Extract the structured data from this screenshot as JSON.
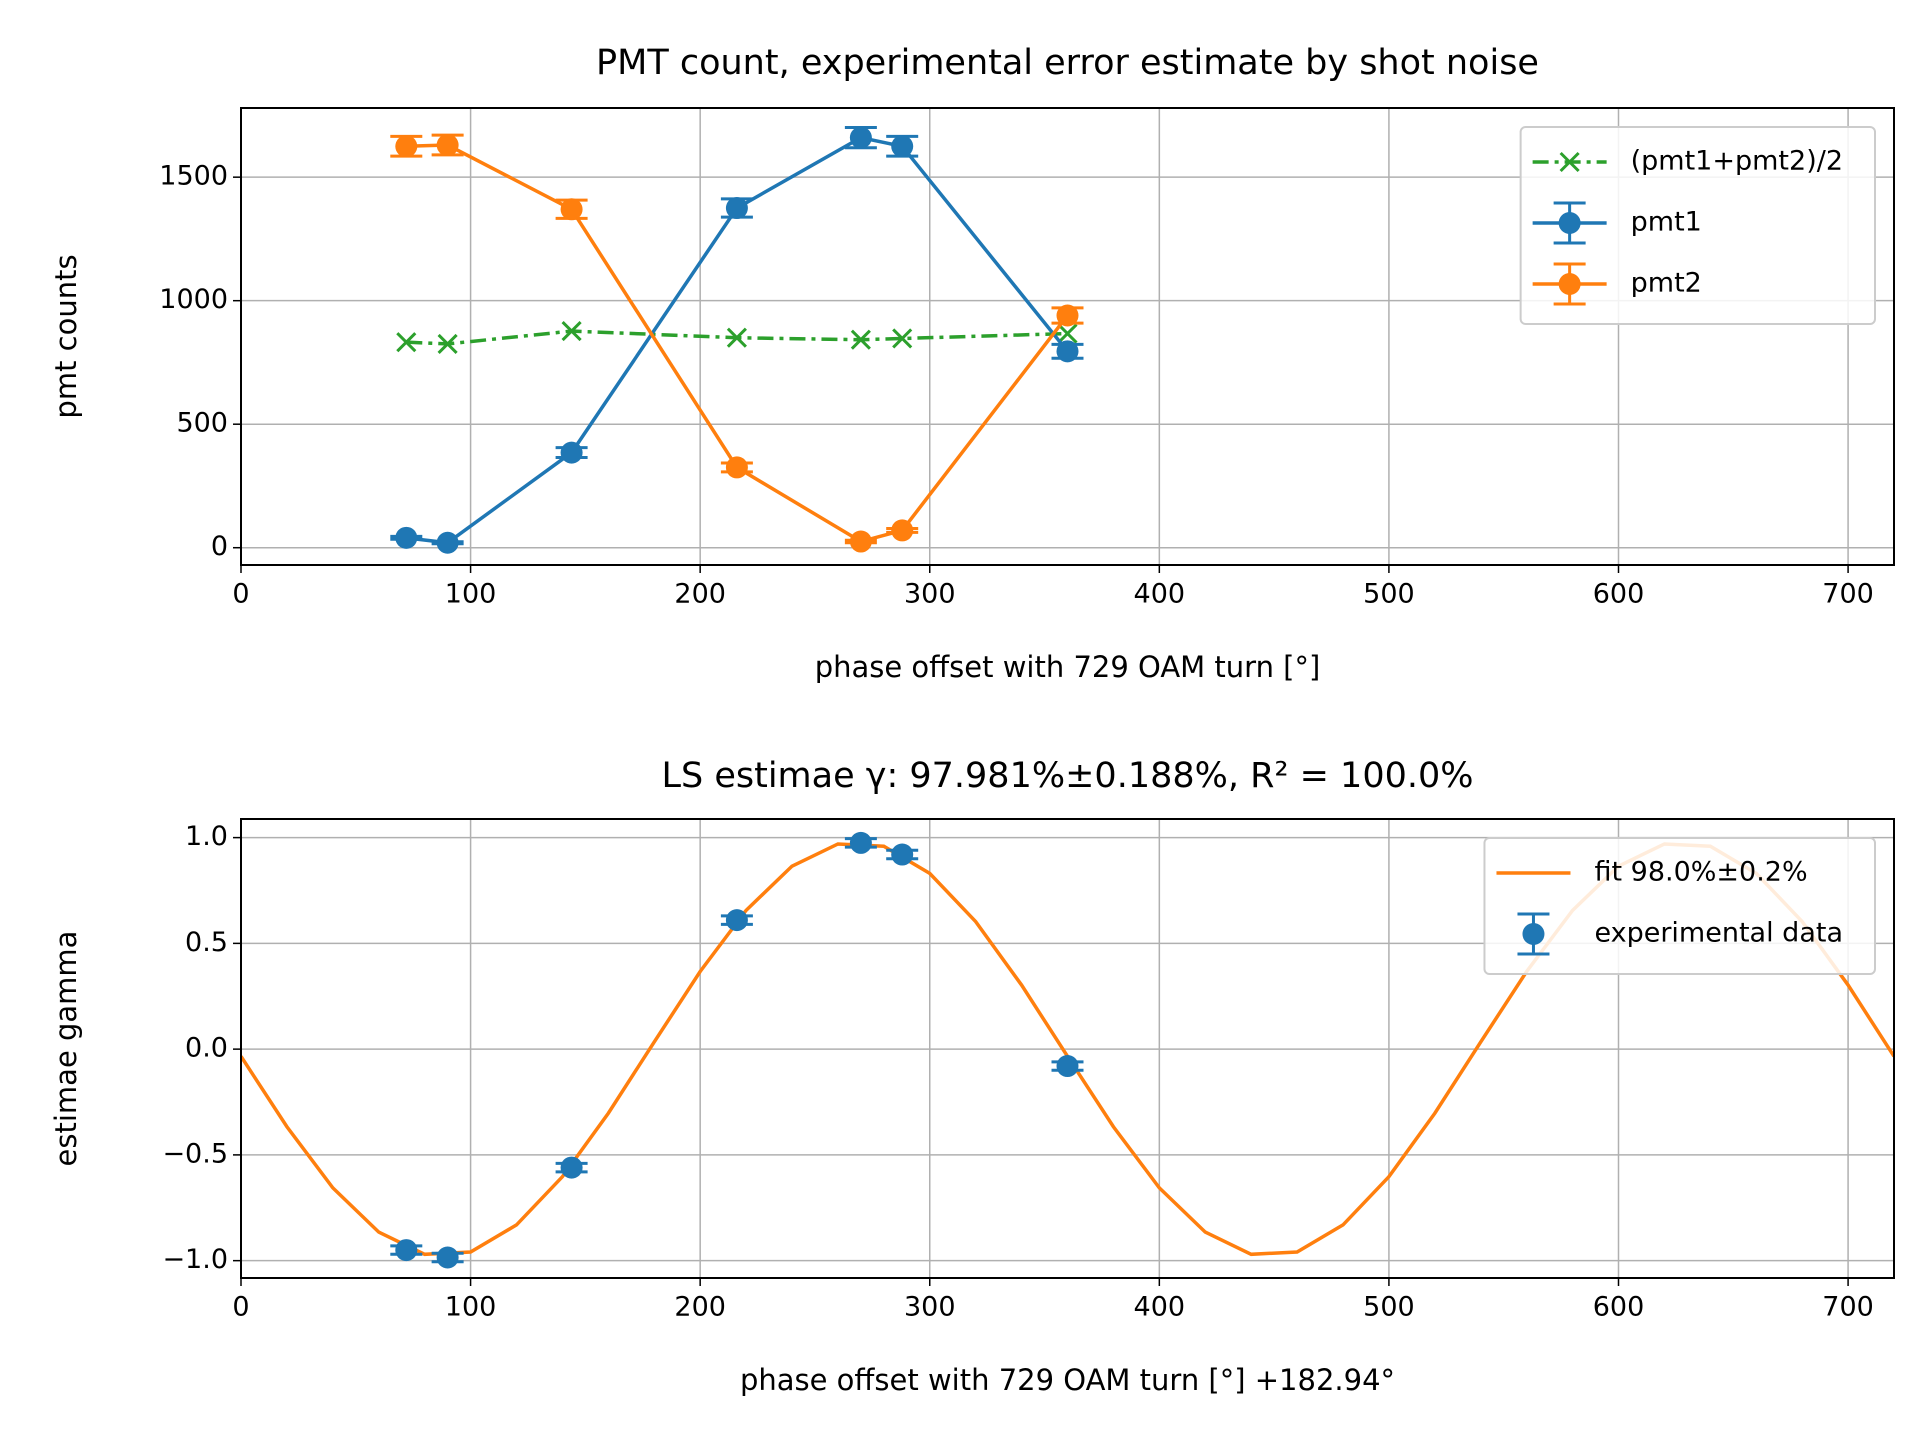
{
  "chart_data": [
    {
      "type": "line",
      "title": "PMT count, experimental error estimate by shot noise",
      "xlabel": "phase offset with 729 OAM turn [°]",
      "ylabel": "pmt counts",
      "xlim": [
        0,
        720
      ],
      "xticks": [
        0,
        100,
        200,
        300,
        400,
        500,
        600,
        700
      ],
      "ylim": [
        -70,
        1780
      ],
      "yticks": [
        0,
        500,
        1000,
        1500
      ],
      "grid": true,
      "legend": "upper right",
      "series": [
        {
          "name": "(pmt1+pmt2)/2",
          "color": "#2ca02c",
          "marker": "x",
          "linestyle": "dashdot",
          "x": [
            72,
            90,
            144,
            216,
            270,
            288,
            360
          ],
          "values": [
            832,
            825,
            877,
            850,
            842,
            847,
            867
          ]
        },
        {
          "name": "pmt1",
          "color": "#1f77b4",
          "marker": "o",
          "linestyle": "solid",
          "x": [
            72,
            90,
            144,
            216,
            270,
            288,
            360
          ],
          "values": [
            40,
            20,
            385,
            1375,
            1660,
            1625,
            795
          ],
          "errors": [
            6,
            4,
            20,
            37,
            41,
            40,
            28
          ]
        },
        {
          "name": "pmt2",
          "color": "#ff7f0e",
          "marker": "o",
          "linestyle": "solid",
          "x": [
            72,
            90,
            144,
            216,
            270,
            288,
            360
          ],
          "values": [
            1625,
            1630,
            1370,
            325,
            25,
            70,
            940
          ],
          "errors": [
            40,
            40,
            37,
            18,
            5,
            8,
            31
          ]
        }
      ]
    },
    {
      "type": "line",
      "title": "LS estimae γ: 97.981%±0.188%, R² = 100.0%",
      "xlabel": "phase offset with 729 OAM turn [°] +182.94°",
      "ylabel": "estimae gamma",
      "xlim": [
        0,
        720
      ],
      "xticks": [
        0,
        100,
        200,
        300,
        400,
        500,
        600,
        700
      ],
      "ylim": [
        -1.082,
        1.088
      ],
      "yticks": [
        {
          "value": -1,
          "label": "−1.0"
        },
        {
          "value": -0.5,
          "label": "−0.5"
        },
        {
          "value": 0,
          "label": "0.0"
        },
        {
          "value": 0.5,
          "label": "0.5"
        },
        {
          "value": 1,
          "label": "1.0"
        }
      ],
      "grid": true,
      "legend": "upper right",
      "series": [
        {
          "name": "fit 98.0%±0.2%",
          "color": "#ff7f0e",
          "marker": "none",
          "linestyle": "solid",
          "x": [
            0,
            20,
            40,
            60,
            80,
            100,
            120,
            140,
            160,
            180,
            200,
            220,
            240,
            260,
            280,
            300,
            320,
            340,
            360,
            380,
            400,
            420,
            440,
            460,
            480,
            500,
            520,
            540,
            560,
            580,
            600,
            620,
            640,
            660,
            680,
            700,
            720
          ],
          "values": [
            -0.034,
            -0.367,
            -0.656,
            -0.865,
            -0.97,
            -0.959,
            -0.831,
            -0.603,
            -0.303,
            0.034,
            0.367,
            0.656,
            0.865,
            0.97,
            0.959,
            0.831,
            0.603,
            0.303,
            -0.034,
            -0.367,
            -0.656,
            -0.865,
            -0.97,
            -0.959,
            -0.831,
            -0.603,
            -0.303,
            0.034,
            0.367,
            0.656,
            0.865,
            0.97,
            0.959,
            0.831,
            0.603,
            0.303,
            -0.034
          ]
        },
        {
          "name": "experimental data",
          "color": "#1f77b4",
          "marker": "o",
          "linestyle": "none",
          "x": [
            72,
            90,
            144,
            216,
            270,
            288,
            360
          ],
          "values": [
            -0.95,
            -0.985,
            -0.56,
            0.61,
            0.975,
            0.92,
            -0.08
          ],
          "errors": [
            0.02,
            0.02,
            0.02,
            0.02,
            0.02,
            0.02,
            0.02
          ]
        }
      ]
    }
  ]
}
